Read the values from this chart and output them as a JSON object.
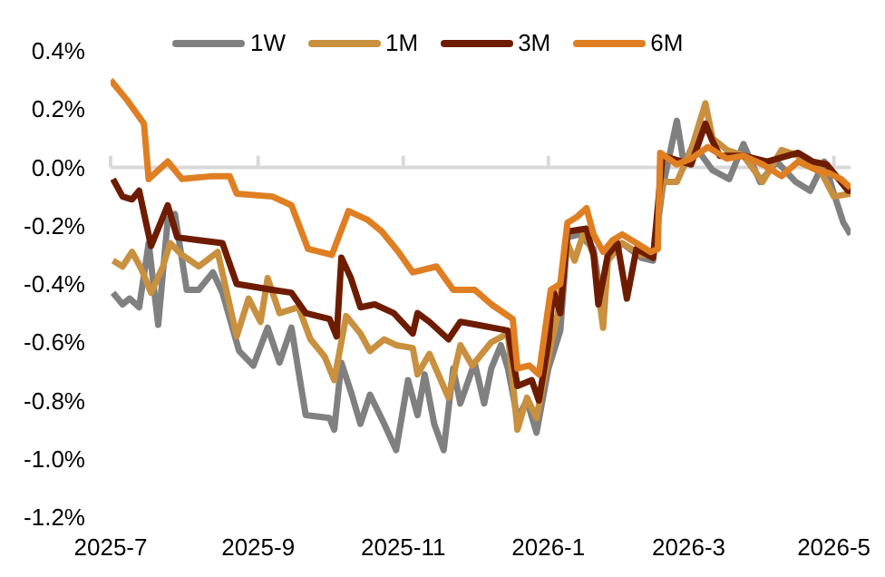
{
  "chart_data": {
    "type": "line",
    "legend": "top",
    "marker": "none",
    "line_style": "solid",
    "grid": false,
    "ref_lines": [
      {
        "axis": "y",
        "value": 0,
        "color": "#d9d9d9"
      }
    ],
    "xlim": [
      "2025-07-01",
      "2026-05-08"
    ],
    "xticks": [
      {
        "value": "2025-07-01",
        "label": "2025-7"
      },
      {
        "value": "2025-09-01",
        "label": "2025-9"
      },
      {
        "value": "2025-11-01",
        "label": "2025-11"
      },
      {
        "value": "2026-01-01",
        "label": "2026-1"
      },
      {
        "value": "2026-03-01",
        "label": "2026-3"
      },
      {
        "value": "2026-05-01",
        "label": "2026-5"
      }
    ],
    "ylim": [
      -1.2,
      0.4
    ],
    "yticks": [
      {
        "value": -1.2,
        "label": "-1.2%"
      },
      {
        "value": -1.0,
        "label": "-1.0%"
      },
      {
        "value": -0.8,
        "label": "-0.8%"
      },
      {
        "value": -0.6,
        "label": "-0.6%"
      },
      {
        "value": -0.4,
        "label": "-0.4%"
      },
      {
        "value": -0.2,
        "label": "-0.2%"
      },
      {
        "value": 0,
        "label": "0.0%"
      },
      {
        "value": 0.2,
        "label": "0.2%"
      },
      {
        "value": 0.4,
        "label": "0.4%"
      }
    ],
    "series": [
      {
        "name": "1W",
        "color": "#808080",
        "x": [
          "2025-07-02",
          "2025-07-06",
          "2025-07-09",
          "2025-07-13",
          "2025-07-17",
          "2025-07-21",
          "2025-07-25",
          "2025-07-28",
          "2025-08-02",
          "2025-08-07",
          "2025-08-13",
          "2025-08-17",
          "2025-08-24",
          "2025-08-30",
          "2025-09-05",
          "2025-09-10",
          "2025-09-15",
          "2025-09-21",
          "2025-10-01",
          "2025-10-03",
          "2025-10-06",
          "2025-10-10",
          "2025-10-14",
          "2025-10-18",
          "2025-10-24",
          "2025-10-29",
          "2025-11-03",
          "2025-11-07",
          "2025-11-10",
          "2025-11-14",
          "2025-11-18",
          "2025-11-22",
          "2025-11-25",
          "2025-12-01",
          "2025-12-05",
          "2025-12-08",
          "2025-12-12",
          "2025-12-15",
          "2025-12-19",
          "2025-12-23",
          "2025-12-27",
          "2026-01-01",
          "2026-01-06",
          "2026-01-09",
          "2026-01-14",
          "2026-01-20",
          "2026-01-24",
          "2026-01-26",
          "2026-02-01",
          "2026-02-09",
          "2026-02-14",
          "2026-02-18",
          "2026-02-24",
          "2026-02-27",
          "2026-03-03",
          "2026-03-11",
          "2026-03-18",
          "2026-03-24",
          "2026-03-31",
          "2026-04-07",
          "2026-04-15",
          "2026-04-21",
          "2026-04-27",
          "2026-05-01",
          "2026-05-05",
          "2026-05-08"
        ],
        "values": [
          -0.43,
          -0.47,
          -0.45,
          -0.48,
          -0.26,
          -0.54,
          -0.18,
          -0.16,
          -0.42,
          -0.42,
          -0.36,
          -0.43,
          -0.63,
          -0.68,
          -0.55,
          -0.67,
          -0.55,
          -0.85,
          -0.86,
          -0.9,
          -0.67,
          -0.77,
          -0.88,
          -0.78,
          -0.88,
          -0.97,
          -0.73,
          -0.85,
          -0.71,
          -0.88,
          -0.97,
          -0.69,
          -0.81,
          -0.67,
          -0.81,
          -0.69,
          -0.61,
          -0.69,
          -0.86,
          -0.8,
          -0.91,
          -0.69,
          -0.56,
          -0.24,
          -0.23,
          -0.28,
          -0.5,
          -0.3,
          -0.26,
          -0.31,
          -0.32,
          -0.07,
          0.16,
          0.01,
          0.08,
          -0.01,
          -0.04,
          0.08,
          -0.05,
          0.02,
          -0.05,
          -0.08,
          0.02,
          -0.09,
          -0.19,
          -0.23
        ]
      },
      {
        "name": "1M",
        "color": "#c8903f",
        "x": [
          "2025-07-02",
          "2025-07-06",
          "2025-07-10",
          "2025-07-14",
          "2025-07-18",
          "2025-07-23",
          "2025-07-26",
          "2025-07-31",
          "2025-08-07",
          "2025-08-15",
          "2025-08-23",
          "2025-08-28",
          "2025-09-02",
          "2025-09-05",
          "2025-09-10",
          "2025-09-18",
          "2025-09-23",
          "2025-09-29",
          "2025-10-03",
          "2025-10-08",
          "2025-10-14",
          "2025-10-18",
          "2025-10-24",
          "2025-10-29",
          "2025-11-05",
          "2025-11-07",
          "2025-11-12",
          "2025-11-20",
          "2025-11-25",
          "2025-11-30",
          "2025-12-08",
          "2025-12-15",
          "2025-12-19",
          "2025-12-23",
          "2025-12-27",
          "2026-01-01",
          "2026-01-05",
          "2026-01-09",
          "2026-01-12",
          "2026-01-16",
          "2026-01-20",
          "2026-01-24",
          "2026-01-26",
          "2026-02-01",
          "2026-02-09",
          "2026-02-14",
          "2026-02-18",
          "2026-02-24",
          "2026-03-02",
          "2026-03-08",
          "2026-03-11",
          "2026-03-17",
          "2026-03-24",
          "2026-04-01",
          "2026-04-09",
          "2026-04-16",
          "2026-04-24",
          "2026-05-01",
          "2026-05-08"
        ],
        "values": [
          -0.32,
          -0.34,
          -0.29,
          -0.35,
          -0.43,
          -0.34,
          -0.26,
          -0.3,
          -0.34,
          -0.29,
          -0.58,
          -0.45,
          -0.53,
          -0.38,
          -0.5,
          -0.48,
          -0.59,
          -0.65,
          -0.73,
          -0.51,
          -0.57,
          -0.63,
          -0.59,
          -0.61,
          -0.62,
          -0.71,
          -0.64,
          -0.79,
          -0.61,
          -0.68,
          -0.6,
          -0.57,
          -0.9,
          -0.79,
          -0.86,
          -0.65,
          -0.5,
          -0.26,
          -0.32,
          -0.22,
          -0.3,
          -0.55,
          -0.32,
          -0.26,
          -0.3,
          -0.3,
          -0.05,
          -0.05,
          0.06,
          0.22,
          0.1,
          0.06,
          0.04,
          -0.05,
          0.06,
          0.04,
          0.01,
          -0.1,
          -0.09
        ]
      },
      {
        "name": "3M",
        "color": "#6e1c00",
        "x": [
          "2025-07-02",
          "2025-07-06",
          "2025-07-10",
          "2025-07-13",
          "2025-07-18",
          "2025-07-25",
          "2025-07-29",
          "2025-08-07",
          "2025-08-17",
          "2025-08-23",
          "2025-09-07",
          "2025-09-15",
          "2025-09-21",
          "2025-10-01",
          "2025-10-04",
          "2025-10-06",
          "2025-10-10",
          "2025-10-14",
          "2025-10-20",
          "2025-10-28",
          "2025-11-05",
          "2025-11-07",
          "2025-11-12",
          "2025-11-20",
          "2025-11-25",
          "2025-12-02",
          "2025-12-15",
          "2025-12-19",
          "2025-12-25",
          "2025-12-28",
          "2026-01-01",
          "2026-01-03",
          "2026-01-06",
          "2026-01-09",
          "2026-01-17",
          "2026-01-20",
          "2026-01-22",
          "2026-01-26",
          "2026-01-30",
          "2026-02-03",
          "2026-02-07",
          "2026-02-14",
          "2026-02-18",
          "2026-03-02",
          "2026-03-08",
          "2026-03-11",
          "2026-03-14",
          "2026-03-24",
          "2026-04-03",
          "2026-04-16",
          "2026-04-22",
          "2026-04-28",
          "2026-05-07",
          "2026-05-08"
        ],
        "values": [
          -0.04,
          -0.1,
          -0.11,
          -0.08,
          -0.27,
          -0.13,
          -0.24,
          -0.25,
          -0.26,
          -0.4,
          -0.42,
          -0.43,
          -0.5,
          -0.52,
          -0.58,
          -0.31,
          -0.38,
          -0.48,
          -0.47,
          -0.5,
          -0.57,
          -0.5,
          -0.53,
          -0.59,
          -0.53,
          -0.54,
          -0.56,
          -0.75,
          -0.73,
          -0.8,
          -0.6,
          -0.42,
          -0.5,
          -0.22,
          -0.21,
          -0.3,
          -0.47,
          -0.3,
          -0.26,
          -0.45,
          -0.28,
          -0.31,
          0.04,
          0.01,
          0.15,
          0.09,
          0.04,
          0.04,
          0.02,
          0.05,
          0.02,
          0.01,
          -0.08,
          -0.08
        ]
      },
      {
        "name": "6M",
        "color": "#e07e22",
        "x": [
          "2025-07-01",
          "2025-07-08",
          "2025-07-15",
          "2025-07-17",
          "2025-07-25",
          "2025-07-31",
          "2025-08-13",
          "2025-08-20",
          "2025-08-23",
          "2025-09-07",
          "2025-09-15",
          "2025-09-22",
          "2025-10-02",
          "2025-10-09",
          "2025-10-17",
          "2025-10-23",
          "2025-10-30",
          "2025-11-05",
          "2025-11-15",
          "2025-11-22",
          "2025-12-01",
          "2025-12-08",
          "2025-12-17",
          "2025-12-19",
          "2025-12-24",
          "2025-12-28",
          "2026-01-02",
          "2026-01-06",
          "2026-01-09",
          "2026-01-13",
          "2026-01-17",
          "2026-01-20",
          "2026-01-24",
          "2026-01-28",
          "2026-02-01",
          "2026-02-07",
          "2026-02-13",
          "2026-02-16",
          "2026-02-17",
          "2026-02-24",
          "2026-03-02",
          "2026-03-09",
          "2026-03-17",
          "2026-03-24",
          "2026-04-01",
          "2026-04-09",
          "2026-04-16",
          "2026-04-24",
          "2026-04-29",
          "2026-05-04",
          "2026-05-08"
        ],
        "values": [
          0.3,
          0.23,
          0.15,
          -0.04,
          0.02,
          -0.04,
          -0.03,
          -0.03,
          -0.09,
          -0.1,
          -0.13,
          -0.28,
          -0.3,
          -0.15,
          -0.18,
          -0.22,
          -0.29,
          -0.36,
          -0.34,
          -0.42,
          -0.42,
          -0.47,
          -0.52,
          -0.69,
          -0.68,
          -0.71,
          -0.42,
          -0.4,
          -0.19,
          -0.17,
          -0.14,
          -0.23,
          -0.29,
          -0.25,
          -0.23,
          -0.26,
          -0.29,
          -0.28,
          0.05,
          0.01,
          0.03,
          0.07,
          0.03,
          0.04,
          0.01,
          -0.03,
          0.02,
          -0.01,
          -0.02,
          -0.04,
          -0.07
        ]
      }
    ]
  }
}
